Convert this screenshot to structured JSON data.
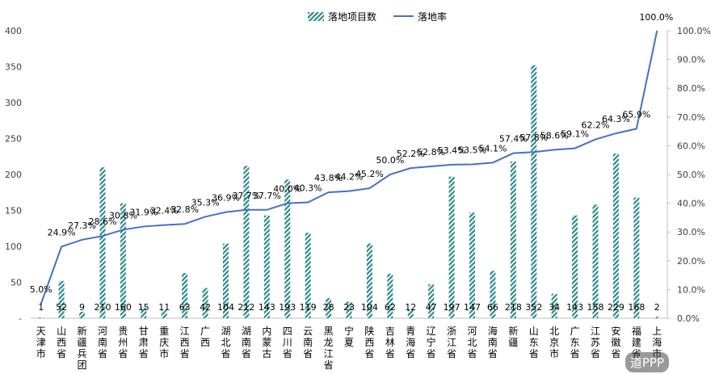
{
  "chart_data": {
    "type": "bar+line",
    "legend": {
      "bar_label": "落地项目数",
      "line_label": "落地率",
      "placement": "top-center"
    },
    "categories": [
      "天津市",
      "山西省",
      "新疆兵团",
      "河南省",
      "贵州省",
      "甘肃省",
      "重庆市",
      "江西省",
      "广西",
      "湖北省",
      "湖南省",
      "内蒙古",
      "四川省",
      "云南省",
      "黑龙江省",
      "宁夏",
      "陕西省",
      "吉林省",
      "青海省",
      "辽宁省",
      "浙江省",
      "河北省",
      "海南省",
      "新疆",
      "山东省",
      "北京市",
      "广东省",
      "江苏省",
      "安徽省",
      "福建省",
      "上海市"
    ],
    "bar_values": [
      1,
      52,
      9,
      210,
      160,
      15,
      11,
      63,
      42,
      104,
      212,
      143,
      193,
      119,
      28,
      23,
      104,
      62,
      12,
      47,
      197,
      147,
      66,
      218,
      352,
      34,
      143,
      158,
      229,
      168,
      2
    ],
    "bar_labels": [
      "1",
      "52",
      "9",
      "210",
      "160",
      "15",
      "11",
      "63",
      "42",
      "104",
      "212",
      "143",
      "193",
      "119",
      "28",
      "23",
      "104",
      "62",
      "12",
      "47",
      "197",
      "147",
      "66",
      "218",
      "352",
      "34",
      "143",
      "158",
      "229",
      "168",
      "2"
    ],
    "line_values": [
      5.0,
      24.9,
      27.3,
      28.6,
      30.8,
      31.9,
      32.4,
      32.8,
      35.3,
      36.9,
      37.7,
      37.7,
      40.0,
      40.3,
      43.8,
      44.2,
      45.2,
      50.0,
      52.2,
      52.8,
      53.4,
      53.5,
      54.1,
      57.4,
      57.8,
      58.6,
      59.1,
      62.2,
      64.3,
      65.9,
      100.0
    ],
    "line_labels": [
      "5.0%",
      "24.9%",
      "27.3%",
      "28.6%",
      "30.8%",
      "31.9%",
      "32.4%",
      "32.8%",
      "35.3%",
      "36.9%",
      "37.7%",
      "37.7%",
      "40.0%",
      "40.3%",
      "43.8%",
      "44.2%",
      "45.2%",
      "50.0%",
      "52.2%",
      "52.8%",
      "53.4%",
      "53.5%",
      "54.1%",
      "57.4%",
      "57.8%",
      "58.6%",
      "59.1%",
      "62.2%",
      "64.3%",
      "65.9%",
      "100.0%"
    ],
    "y_left": {
      "min": 0,
      "max": 400,
      "ticks": [
        "-",
        "50",
        "100",
        "150",
        "200",
        "250",
        "300",
        "350",
        "400"
      ]
    },
    "y_right": {
      "min": 0,
      "max": 100,
      "ticks": [
        "0.0%",
        "10.0%",
        "20.0%",
        "30.0%",
        "40.0%",
        "50.0%",
        "60.0%",
        "70.0%",
        "80.0%",
        "90.0%",
        "100.0%"
      ]
    },
    "colors": {
      "bar": "#2e8b8b",
      "line": "#4472c4",
      "axis": "#bfbfbf"
    }
  },
  "watermark": "道PPP"
}
